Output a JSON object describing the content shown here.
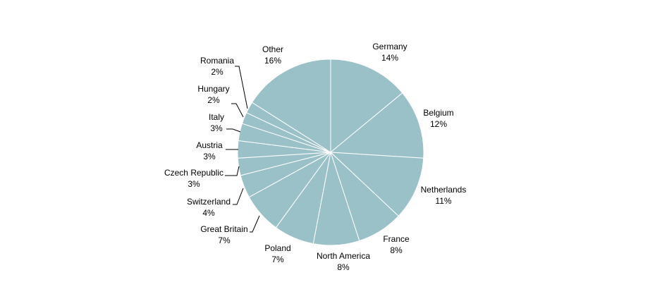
{
  "chart_data": {
    "type": "pie",
    "start_angle_deg": 0,
    "direction": "clockwise",
    "slice_color": "#9bc1c8",
    "slices": [
      {
        "label": "Germany",
        "value": 14,
        "pct_label": "14%"
      },
      {
        "label": "Belgium",
        "value": 12,
        "pct_label": "12%"
      },
      {
        "label": "Netherlands",
        "value": 11,
        "pct_label": "11%"
      },
      {
        "label": "France",
        "value": 8,
        "pct_label": "8%"
      },
      {
        "label": "North America",
        "value": 8,
        "pct_label": "8%"
      },
      {
        "label": "Poland",
        "value": 7,
        "pct_label": "7%"
      },
      {
        "label": "Great Britain",
        "value": 7,
        "pct_label": "7%"
      },
      {
        "label": "Switzerland",
        "value": 4,
        "pct_label": "4%"
      },
      {
        "label": "Czech Republic",
        "value": 3,
        "pct_label": "3%"
      },
      {
        "label": "Austria",
        "value": 3,
        "pct_label": "3%"
      },
      {
        "label": "Italy",
        "value": 3,
        "pct_label": "3%"
      },
      {
        "label": "Hungary",
        "value": 2,
        "pct_label": "2%"
      },
      {
        "label": "Romania",
        "value": 2,
        "pct_label": "2%"
      },
      {
        "label": "Other",
        "value": 16,
        "pct_label": "16%"
      }
    ]
  }
}
